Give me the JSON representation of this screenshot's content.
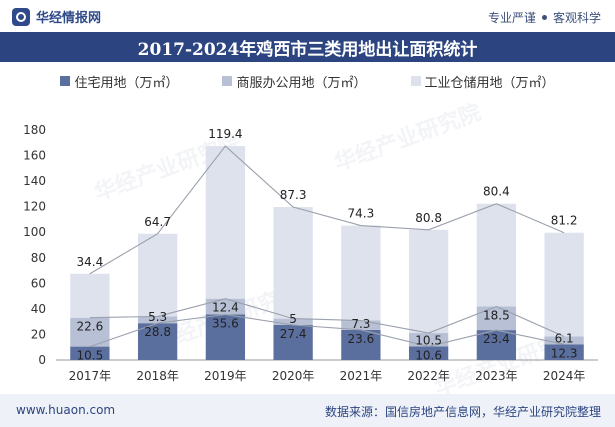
{
  "header": {
    "brand": "华经情报网",
    "slogan_left": "专业严谨",
    "slogan_right": "客观科学"
  },
  "title": "2017-2024年鸡西市三类用地出让面积统计",
  "legend": [
    "住宅用地（万㎡）",
    "商服办公用地（万㎡）",
    "工业仓储用地（万㎡）"
  ],
  "watermark": "华经产业研究院",
  "chart_data": {
    "type": "bar",
    "stacked": true,
    "categories": [
      "2017年",
      "2018年",
      "2019年",
      "2020年",
      "2021年",
      "2022年",
      "2023年",
      "2024年"
    ],
    "series": [
      {
        "name": "住宅用地（万㎡）",
        "values": [
          10.5,
          28.8,
          35.6,
          27.4,
          23.6,
          10.6,
          23.4,
          12.3
        ],
        "color": "#5b6f9e"
      },
      {
        "name": "商服办公用地（万㎡）",
        "values": [
          22.6,
          5.3,
          12.4,
          5.0,
          7.3,
          10.5,
          18.5,
          6.1
        ],
        "color": "#b7c0d4"
      },
      {
        "name": "工业仓储用地（万㎡）",
        "values": [
          34.4,
          64.7,
          119.4,
          87.3,
          74.3,
          80.8,
          80.4,
          81.2
        ],
        "color": "#dde2ec"
      }
    ],
    "yticks": [
      0,
      20,
      40,
      60,
      80,
      100,
      120,
      140,
      160,
      180
    ],
    "ylim": [
      0,
      180
    ],
    "grid": false,
    "legend_position": "top"
  },
  "footer": {
    "site": "www.huaon.com",
    "source": "数据来源：国信房地产信息网，华经产业研究院整理"
  }
}
